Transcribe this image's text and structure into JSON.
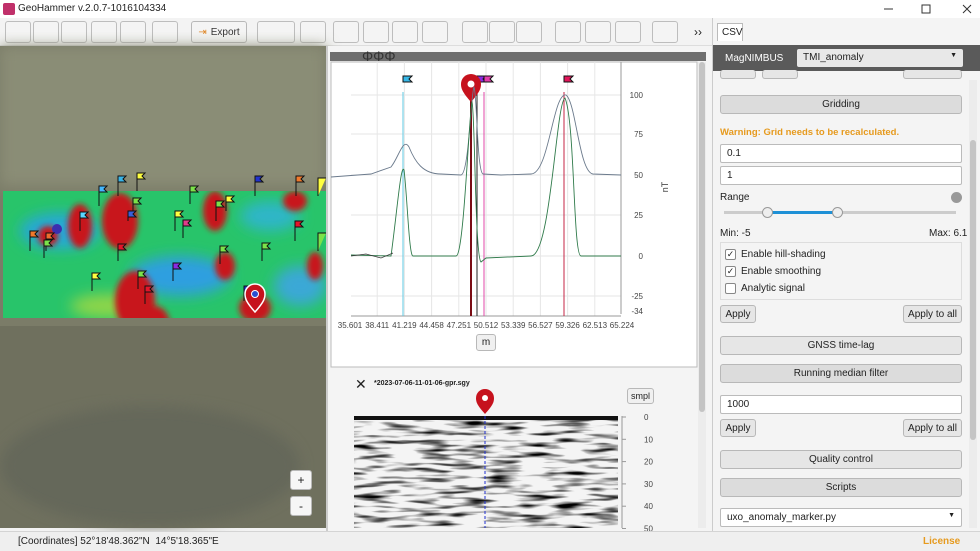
{
  "window": {
    "title": "GeoHammer v.2.0.7-1016104334"
  },
  "toolbar": {
    "export": "Export"
  },
  "plot": {
    "y_axis_label": "nT",
    "yticks": [
      "100",
      "75",
      "50",
      "25",
      "0",
      "-25",
      "-34"
    ],
    "xticks": [
      "35.601",
      "38.411",
      "41.219",
      "44.458",
      "47.251",
      "50.512",
      "53.339",
      "56.527",
      "59.326",
      "62.513",
      "65.224"
    ],
    "unit_button": "m"
  },
  "gpr": {
    "file": "*2023-07-06-11-01-06-gpr.sgy",
    "unit_button": "smpl",
    "ticks": [
      "0",
      "10",
      "20",
      "30",
      "40",
      "50"
    ]
  },
  "side_panel": {
    "tab": "CSV",
    "source": "MagNIMBUS",
    "layer": "TMI_anomaly",
    "gridding": "Gridding",
    "warning": "Warning: Grid needs to be recalculated.",
    "cell_size": "0.1",
    "blanking": "1",
    "range_label": "Range",
    "min": "Min: -5",
    "max": "Max: 6.1",
    "options": [
      "Enable hill-shading",
      "Enable smoothing",
      "Analytic signal"
    ],
    "apply": "Apply",
    "apply_all": "Apply to all",
    "gnss": "GNSS time-lag",
    "median": "Running median filter",
    "window": "1000",
    "apply2": "Apply",
    "apply_all2": "Apply to all",
    "quality": "Quality control",
    "scripts": "Scripts",
    "script_file": "uxo_anomaly_marker.py"
  },
  "map": {
    "zoom_in": "+",
    "zoom_out": "-"
  },
  "status_bar": {
    "coordinates": "[Coordinates] 52°18'48.362\"N  14°5'18.365\"E",
    "license": "License"
  }
}
